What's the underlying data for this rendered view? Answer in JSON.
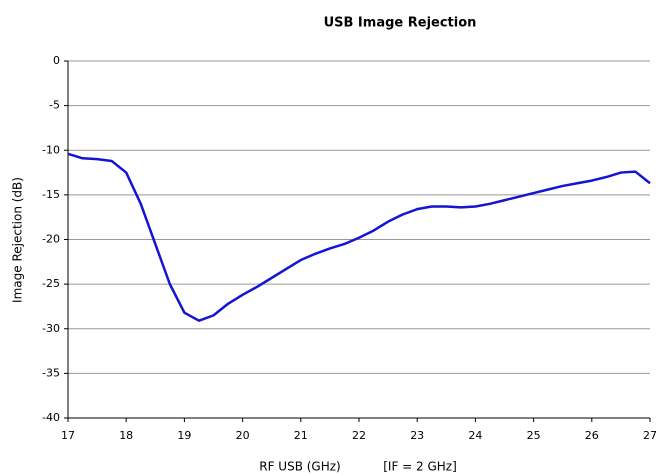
{
  "chart_data": {
    "type": "line",
    "title": "USB Image Rejection",
    "xlabel": "RF USB (GHz)",
    "annotations": [
      "[IF = 2 GHz]"
    ],
    "ylabel": "Image Rejection (dB)",
    "x": [
      17,
      17.25,
      17.5,
      17.75,
      18,
      18.25,
      18.5,
      18.75,
      19,
      19.25,
      19.5,
      19.75,
      20,
      20.25,
      20.5,
      20.75,
      21,
      21.25,
      21.5,
      21.75,
      22,
      22.25,
      22.5,
      22.75,
      23,
      23.25,
      23.5,
      23.75,
      24,
      24.25,
      24.5,
      24.75,
      25,
      25.25,
      25.5,
      25.75,
      26,
      26.25,
      26.5,
      26.75,
      27
    ],
    "series": [
      {
        "name": "USB Image Rejection",
        "color": "#1414d2",
        "values": [
          -10.4,
          -10.9,
          -11,
          -11.2,
          -12.5,
          -16,
          -20.5,
          -25,
          -28.2,
          -29.1,
          -28.5,
          -27.2,
          -26.2,
          -25.3,
          -24.3,
          -23.3,
          -22.3,
          -21.6,
          -21,
          -20.5,
          -19.8,
          -19,
          -18,
          -17.2,
          -16.6,
          -16.3,
          -16.3,
          -16.4,
          -16.3,
          -16,
          -15.6,
          -15.2,
          -14.8,
          -14.4,
          -14,
          -13.7,
          -13.4,
          -13,
          -12.5,
          -12.4,
          -13.7
        ]
      }
    ],
    "xlim": [
      17,
      27
    ],
    "xticks": [
      17,
      18,
      19,
      20,
      21,
      22,
      23,
      24,
      25,
      26,
      27
    ],
    "ylim": [
      -40,
      0
    ],
    "yticks": [
      0,
      -5,
      -10,
      -15,
      -20,
      -25,
      -30,
      -35,
      -40
    ],
    "grid": true
  }
}
